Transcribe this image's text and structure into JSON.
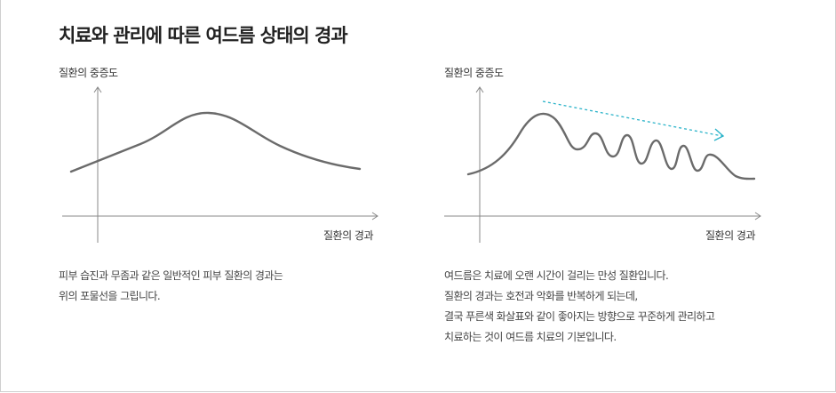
{
  "title": "치료와 관리에 따른 여드름 상태의 경과",
  "left_panel": {
    "y_axis_label": "질환의 중증도",
    "x_axis_label": "질환의 경과",
    "description": [
      "피부 습진과 무좀과 같은 일반적인 피부 질환의 경과는",
      "위의 포물선을 그립니다."
    ]
  },
  "right_panel": {
    "y_axis_label": "질환의 중증도",
    "x_axis_label": "질환의 경과",
    "description": [
      "여드름은 치료에 오랜 시간이 걸리는 만성 질환입니다.",
      "질환의 경과는 호전과 악화를 반복하게 되는데,",
      "결국 푸른색 화살표와 같이 좋아지는 방향으로 꾸준하게 관리하고",
      "치료하는 것이 여드름 치료의 기본입니다."
    ]
  },
  "colors": {
    "curve": "#6b6b6b",
    "axis": "#888888",
    "trend_arrow": "#2ab3c9"
  },
  "icons": {
    "trend_arrow": "dashed-arrow-icon"
  }
}
